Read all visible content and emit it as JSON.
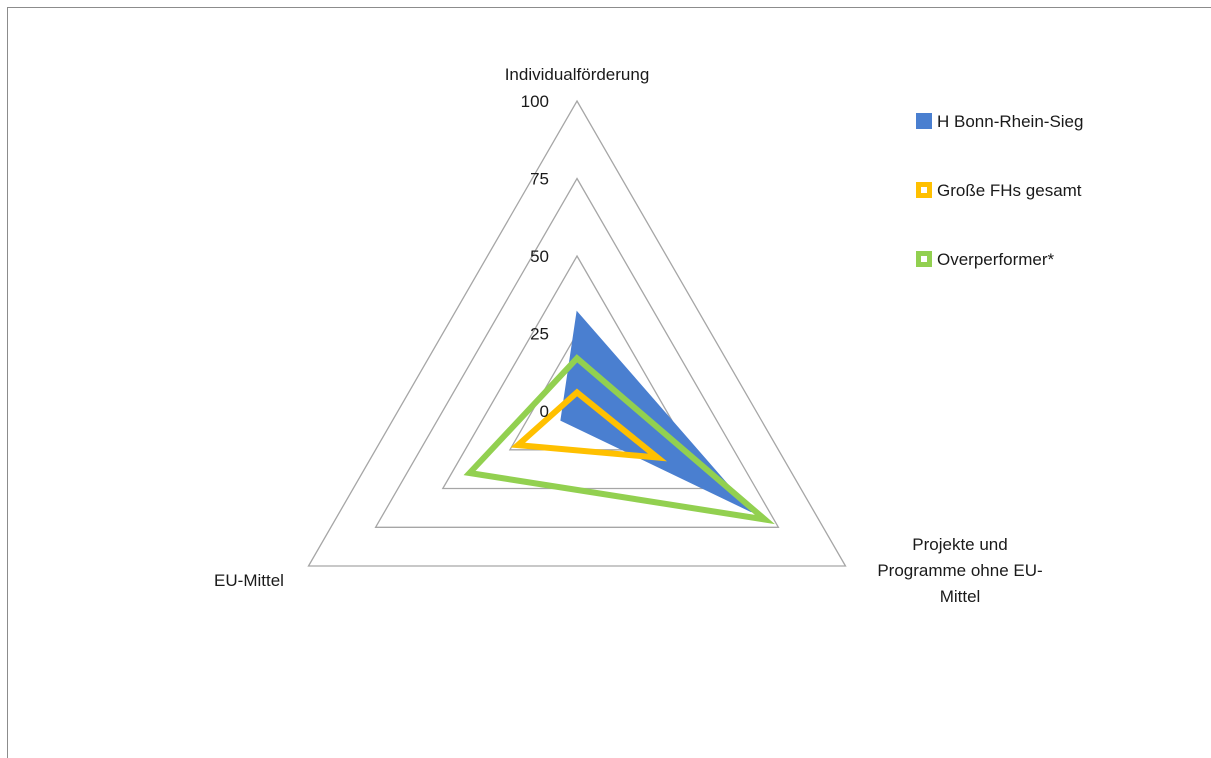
{
  "chart_data": {
    "type": "radar",
    "title": "",
    "axes": [
      "Individualförderung",
      "Projekte und Programme ohne EU-Mittel",
      "EU-Mittel"
    ],
    "axis_label_lines": [
      [
        "Individualförderung"
      ],
      [
        "Projekte und",
        "Programme ohne EU-",
        "Mittel"
      ],
      [
        "EU-Mittel"
      ]
    ],
    "range": [
      0,
      100
    ],
    "ticks": [
      0,
      25,
      50,
      75,
      100
    ],
    "tick_labels": [
      "0",
      "25",
      "50",
      "75",
      "100"
    ],
    "grid": true,
    "legend_position": "top-right",
    "series": [
      {
        "name": "H Bonn-Rhein-Sieg",
        "style": "area",
        "color": "#4a7fd0",
        "values": [
          32,
          65,
          6
        ]
      },
      {
        "name": "Große FHs gesamt",
        "style": "line",
        "color": "#ffc000",
        "values": [
          6,
          30,
          22
        ]
      },
      {
        "name": "Overperformer*",
        "style": "line",
        "color": "#92d050",
        "values": [
          17,
          70,
          40
        ]
      }
    ]
  }
}
